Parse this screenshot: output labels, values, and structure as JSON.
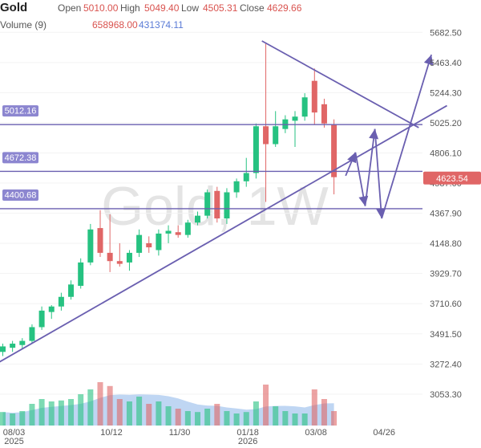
{
  "header": {
    "symbol": "Gold",
    "open_label": "Open",
    "open": "5010.00",
    "high_label": "High",
    "high": "5049.40",
    "low_label": "Low",
    "low": "4505.31",
    "close_label": "Close",
    "close": "4629.66",
    "volume_label": "Volume (9)",
    "volume_value": "658968.00",
    "volume_ma": "431374.11"
  },
  "watermark": "Gold, 1W",
  "colors": {
    "up": "#26c281",
    "down": "#e06666",
    "line": "#6a5fb0",
    "volume_area": "#a9c8ef",
    "price_tag": "#e06666",
    "level_tag": "#8c86d0"
  },
  "chart_data": {
    "type": "candlestick",
    "ylim": [
      3000,
      5760
    ],
    "y_ticks": [
      "5682.50",
      "5463.40",
      "5244.30",
      "5025.20",
      "4806.10",
      "4587.00",
      "4367.90",
      "4148.80",
      "3929.70",
      "3710.60",
      "3491.50",
      "3272.40",
      "3053.30"
    ],
    "x_ticks": [
      {
        "label": "08/03",
        "sub": "2025",
        "index": 0
      },
      {
        "label": "10/12",
        "sub": "",
        "index": 10
      },
      {
        "label": "11/30",
        "sub": "",
        "index": 17
      },
      {
        "label": "01/18",
        "sub": "2026",
        "index": 24
      },
      {
        "label": "03/08",
        "sub": "",
        "index": 31
      },
      {
        "label": "04/26",
        "sub": "",
        "index": 38
      }
    ],
    "candles": [
      {
        "o": 3360,
        "h": 3420,
        "l": 3330,
        "c": 3400,
        "v": 0.28
      },
      {
        "o": 3390,
        "h": 3440,
        "l": 3360,
        "c": 3420,
        "v": 0.25
      },
      {
        "o": 3410,
        "h": 3460,
        "l": 3380,
        "c": 3440,
        "v": 0.3
      },
      {
        "o": 3440,
        "h": 3560,
        "l": 3420,
        "c": 3540,
        "v": 0.45
      },
      {
        "o": 3540,
        "h": 3690,
        "l": 3520,
        "c": 3660,
        "v": 0.55
      },
      {
        "o": 3650,
        "h": 3700,
        "l": 3600,
        "c": 3690,
        "v": 0.5
      },
      {
        "o": 3690,
        "h": 3790,
        "l": 3660,
        "c": 3760,
        "v": 0.52
      },
      {
        "o": 3760,
        "h": 3880,
        "l": 3740,
        "c": 3850,
        "v": 0.55
      },
      {
        "o": 3840,
        "h": 4040,
        "l": 3820,
        "c": 4010,
        "v": 0.65
      },
      {
        "o": 4010,
        "h": 4290,
        "l": 3990,
        "c": 4250,
        "v": 0.75
      },
      {
        "o": 4260,
        "h": 4390,
        "l": 4050,
        "c": 4080,
        "v": 0.9
      },
      {
        "o": 4080,
        "h": 4360,
        "l": 3940,
        "c": 4020,
        "v": 0.82
      },
      {
        "o": 4020,
        "h": 4150,
        "l": 3980,
        "c": 4000,
        "v": 0.55
      },
      {
        "o": 4010,
        "h": 4100,
        "l": 3950,
        "c": 4080,
        "v": 0.5
      },
      {
        "o": 4080,
        "h": 4250,
        "l": 4050,
        "c": 4210,
        "v": 0.6
      },
      {
        "o": 4150,
        "h": 4200,
        "l": 4080,
        "c": 4120,
        "v": 0.45
      },
      {
        "o": 4100,
        "h": 4250,
        "l": 4060,
        "c": 4220,
        "v": 0.5
      },
      {
        "o": 4220,
        "h": 4280,
        "l": 4150,
        "c": 4240,
        "v": 0.4
      },
      {
        "o": 4230,
        "h": 4280,
        "l": 4190,
        "c": 4210,
        "v": 0.35
      },
      {
        "o": 4210,
        "h": 4320,
        "l": 4190,
        "c": 4300,
        "v": 0.3
      },
      {
        "o": 4300,
        "h": 4380,
        "l": 4280,
        "c": 4350,
        "v": 0.28
      },
      {
        "o": 4350,
        "h": 4540,
        "l": 4330,
        "c": 4520,
        "v": 0.35
      },
      {
        "o": 4530,
        "h": 4560,
        "l": 4300,
        "c": 4330,
        "v": 0.45
      },
      {
        "o": 4330,
        "h": 4550,
        "l": 4290,
        "c": 4520,
        "v": 0.3
      },
      {
        "o": 4520,
        "h": 4620,
        "l": 4480,
        "c": 4600,
        "v": 0.25
      },
      {
        "o": 4600,
        "h": 4770,
        "l": 4560,
        "c": 4660,
        "v": 0.28
      },
      {
        "o": 4660,
        "h": 5020,
        "l": 4620,
        "c": 5000,
        "v": 0.5
      },
      {
        "o": 5000,
        "h": 5600,
        "l": 4450,
        "c": 4870,
        "v": 0.85
      },
      {
        "o": 4870,
        "h": 5110,
        "l": 4850,
        "c": 5000,
        "v": 0.4
      },
      {
        "o": 4980,
        "h": 5080,
        "l": 4950,
        "c": 5050,
        "v": 0.3
      },
      {
        "o": 5040,
        "h": 5110,
        "l": 4850,
        "c": 5070,
        "v": 0.25
      },
      {
        "o": 5070,
        "h": 5240,
        "l": 5040,
        "c": 5210,
        "v": 0.25
      },
      {
        "o": 5330,
        "h": 5420,
        "l": 5010,
        "c": 5100,
        "v": 0.75
      },
      {
        "o": 5160,
        "h": 5200,
        "l": 4990,
        "c": 5020,
        "v": 0.55
      },
      {
        "o": 5010,
        "h": 5050,
        "l": 4505,
        "c": 4630,
        "v": 0.3
      }
    ],
    "levels": [
      {
        "value": 5012.16,
        "label": "5012.16"
      },
      {
        "value": 4672.38,
        "label": "4672.38"
      },
      {
        "value": 4400.68,
        "label": "4400.68"
      }
    ],
    "last_price": {
      "value": 4623.54,
      "label": "4623.54"
    },
    "trendlines": [
      {
        "from": [
          -1.5,
          3240
        ],
        "to": [
          45.6,
          5150
        ]
      },
      {
        "from": [
          26.6,
          5620
        ],
        "to": [
          42.7,
          4990
        ]
      }
    ],
    "arrows": [
      {
        "from": [
          35.2,
          4640
        ],
        "to": [
          36.2,
          4810
        ]
      },
      {
        "from": [
          36.2,
          4810
        ],
        "to": [
          37.2,
          4420
        ]
      },
      {
        "from": [
          37.2,
          4420
        ],
        "to": [
          38.2,
          4980
        ]
      },
      {
        "from": [
          38.2,
          4980
        ],
        "to": [
          38.9,
          4330
        ]
      },
      {
        "from": [
          38.9,
          4330
        ],
        "to": [
          44.0,
          5520
        ]
      }
    ]
  }
}
